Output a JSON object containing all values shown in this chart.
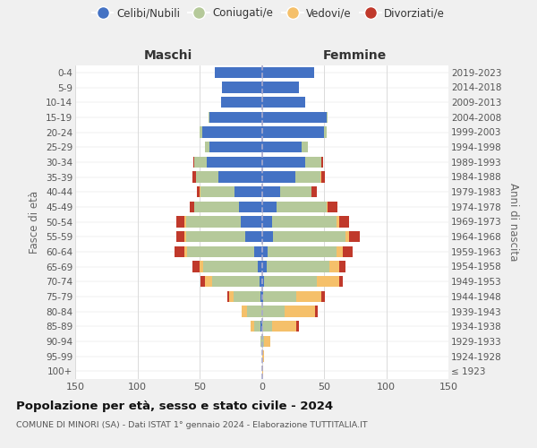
{
  "age_groups": [
    "100+",
    "95-99",
    "90-94",
    "85-89",
    "80-84",
    "75-79",
    "70-74",
    "65-69",
    "60-64",
    "55-59",
    "50-54",
    "45-49",
    "40-44",
    "35-39",
    "30-34",
    "25-29",
    "20-24",
    "15-19",
    "10-14",
    "5-9",
    "0-4"
  ],
  "birth_years": [
    "≤ 1923",
    "1924-1928",
    "1929-1933",
    "1934-1938",
    "1939-1943",
    "1944-1948",
    "1949-1953",
    "1954-1958",
    "1959-1963",
    "1964-1968",
    "1969-1973",
    "1974-1978",
    "1979-1983",
    "1984-1988",
    "1989-1993",
    "1994-1998",
    "1999-2003",
    "2004-2008",
    "2009-2013",
    "2014-2018",
    "2019-2023"
  ],
  "male_celibi": [
    0,
    0,
    0,
    1,
    0,
    1,
    2,
    3,
    6,
    13,
    17,
    18,
    22,
    35,
    44,
    42,
    48,
    42,
    33,
    32,
    38
  ],
  "male_coniugati": [
    0,
    0,
    1,
    5,
    12,
    22,
    38,
    44,
    54,
    48,
    44,
    36,
    27,
    18,
    10,
    4,
    2,
    1,
    0,
    0,
    0
  ],
  "male_vedovi": [
    0,
    0,
    0,
    3,
    4,
    3,
    6,
    3,
    2,
    1,
    1,
    0,
    1,
    0,
    0,
    0,
    0,
    0,
    0,
    0,
    0
  ],
  "male_divorziati": [
    0,
    0,
    0,
    0,
    0,
    2,
    3,
    6,
    8,
    7,
    7,
    4,
    2,
    3,
    1,
    0,
    0,
    0,
    0,
    0,
    0
  ],
  "female_nubili": [
    0,
    0,
    0,
    0,
    0,
    1,
    2,
    4,
    5,
    9,
    8,
    12,
    15,
    27,
    35,
    32,
    50,
    52,
    35,
    30,
    42
  ],
  "female_coniugate": [
    0,
    0,
    2,
    8,
    18,
    27,
    42,
    50,
    55,
    58,
    52,
    40,
    25,
    20,
    13,
    5,
    2,
    1,
    0,
    0,
    0
  ],
  "female_vedove": [
    1,
    2,
    5,
    20,
    25,
    20,
    18,
    8,
    5,
    3,
    2,
    1,
    0,
    1,
    0,
    0,
    0,
    0,
    0,
    0,
    0
  ],
  "female_divorziate": [
    0,
    0,
    0,
    2,
    2,
    3,
    3,
    5,
    8,
    9,
    8,
    8,
    4,
    3,
    1,
    0,
    0,
    0,
    0,
    0,
    0
  ],
  "color_celibi": "#4472c4",
  "color_coniugati": "#b5c99a",
  "color_vedovi": "#f5c06a",
  "color_divorziati": "#c0392b",
  "title": "Popolazione per età, sesso e stato civile - 2024",
  "subtitle": "COMUNE DI MINORI (SA) - Dati ISTAT 1° gennaio 2024 - Elaborazione TUTTITALIA.IT",
  "label_maschi": "Maschi",
  "label_femmine": "Femmine",
  "ylabel_left": "Fasce di età",
  "ylabel_right": "Anni di nascita",
  "legend_labels": [
    "Celibi/Nubili",
    "Coniugati/e",
    "Vedovi/e",
    "Divorziati/e"
  ],
  "xlim": 150,
  "bg_color": "#f0f0f0",
  "plot_bg": "#ffffff"
}
